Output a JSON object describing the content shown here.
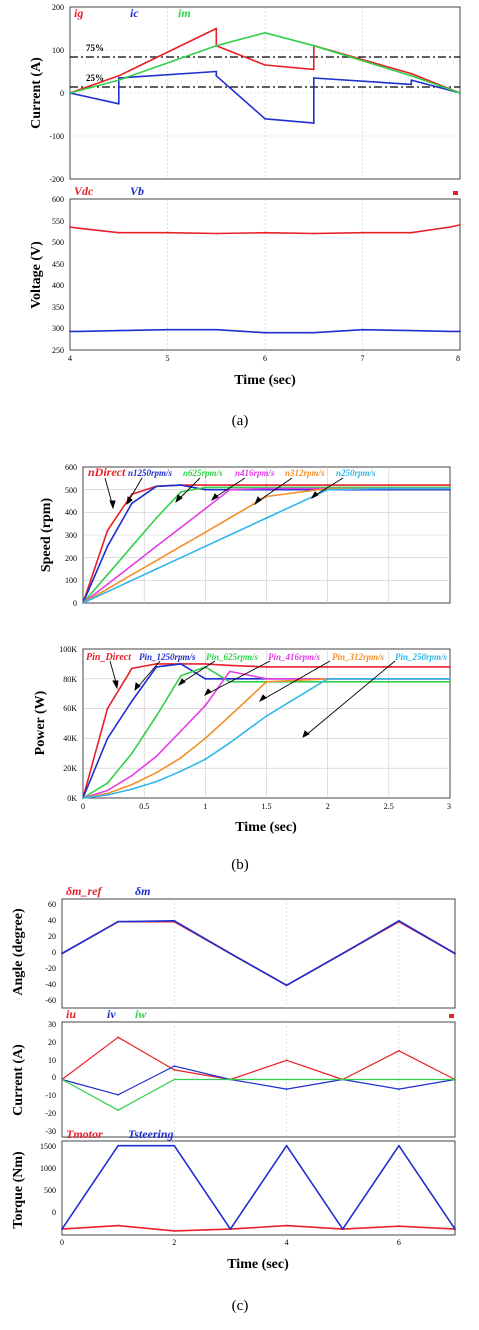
{
  "colors": {
    "red": "#e8202a",
    "blue": "#1f2ecf",
    "green": "#31d04a",
    "magenta": "#e63ce8",
    "orange": "#f4902a",
    "cyan": "#2fb6ea"
  },
  "figure_a": {
    "caption": "(a)",
    "xlabel": "Time (sec)",
    "xticks": [
      "4",
      "5",
      "6",
      "7",
      "8"
    ],
    "top": {
      "ylabel": "Current (A)",
      "yticks": [
        "200",
        "100",
        "0",
        "-100",
        "-200"
      ],
      "legend": [
        {
          "text": "ig",
          "color": "red"
        },
        {
          "text": "ic",
          "color": "blue"
        },
        {
          "text": "im",
          "color": "green"
        }
      ],
      "annotations": [
        "75%",
        "25%"
      ]
    },
    "bottom": {
      "ylabel": "Voltage (V)",
      "yticks": [
        "600",
        "550",
        "500",
        "450",
        "400",
        "350",
        "300",
        "250"
      ],
      "legend": [
        {
          "text": "Vdc",
          "color": "red"
        },
        {
          "text": "Vb",
          "color": "blue"
        }
      ]
    }
  },
  "figure_b": {
    "caption": "(b)",
    "xlabel": "Time (sec)",
    "xticks": [
      "0",
      "0.5",
      "1",
      "1.5",
      "2",
      "2.5",
      "3"
    ],
    "top": {
      "ylabel": "Speed (rpm)",
      "yticks": [
        "600",
        "500",
        "400",
        "300",
        "200",
        "100",
        "0"
      ],
      "legend": [
        {
          "text": "nDirect",
          "color": "red"
        },
        {
          "text": "n1250rpm/s",
          "color": "blue"
        },
        {
          "text": "n625rpm/s",
          "color": "green"
        },
        {
          "text": "n416rpm/s",
          "color": "magenta"
        },
        {
          "text": "n312rpm/s",
          "color": "orange"
        },
        {
          "text": "n250rpm/s",
          "color": "cyan"
        }
      ]
    },
    "bottom": {
      "ylabel": "Power (W)",
      "yticks": [
        "100K",
        "80K",
        "60K",
        "40K",
        "20K",
        "0K"
      ],
      "legend": [
        {
          "text": "Pin_Direct",
          "color": "red"
        },
        {
          "text": "Pin_1250rpm/s",
          "color": "blue"
        },
        {
          "text": "Pin_625rpm/s",
          "color": "green"
        },
        {
          "text": "Pin_416rpm/s",
          "color": "magenta"
        },
        {
          "text": "Pin_312rpm/s",
          "color": "orange"
        },
        {
          "text": "Pin_250rpm/s",
          "color": "cyan"
        }
      ]
    }
  },
  "figure_c": {
    "caption": "(c)",
    "xlabel": "Time (sec)",
    "xticks": [
      "0",
      "2",
      "4",
      "6"
    ],
    "top": {
      "ylabel": "Angle (degree)",
      "yticks": [
        "60",
        "40",
        "20",
        "0",
        "-20",
        "-40",
        "-60"
      ],
      "legend": [
        {
          "text": "δm_ref",
          "color": "red"
        },
        {
          "text": "δm",
          "color": "blue"
        }
      ]
    },
    "middle": {
      "ylabel": "Current (A)",
      "yticks": [
        "30",
        "20",
        "10",
        "0",
        "-10",
        "-20",
        "-30"
      ],
      "legend": [
        {
          "text": "iu",
          "color": "red"
        },
        {
          "text": "iv",
          "color": "blue"
        },
        {
          "text": "iw",
          "color": "green"
        }
      ]
    },
    "bottom": {
      "ylabel": "Torque (Nm)",
      "yticks": [
        "1500",
        "1000",
        "500",
        "0"
      ],
      "legend": [
        {
          "text": "Tmotor",
          "color": "red"
        },
        {
          "text": "Tsteering",
          "color": "blue"
        }
      ]
    }
  },
  "chart_data": [
    {
      "type": "line",
      "panel": "a-top",
      "x": [
        4,
        4.5,
        4.5,
        5.5,
        5.5,
        6,
        6.5,
        6.5,
        7.5,
        7.5,
        8
      ],
      "xlim": [
        4,
        8
      ],
      "ylim": [
        -200,
        200
      ],
      "series": [
        {
          "name": "ig",
          "color": "red",
          "values": [
            0,
            40,
            40,
            150,
            110,
            65,
            55,
            110,
            45,
            45,
            0
          ]
        },
        {
          "name": "ic",
          "color": "blue",
          "values": [
            0,
            -25,
            35,
            50,
            40,
            -60,
            -70,
            35,
            20,
            30,
            0
          ]
        },
        {
          "name": "im",
          "color": "green",
          "values": [
            0,
            30,
            30,
            110,
            110,
            140,
            110,
            110,
            40,
            40,
            0
          ]
        }
      ]
    },
    {
      "type": "line",
      "panel": "a-bottom",
      "x": [
        4,
        4.1,
        4.5,
        5,
        5.5,
        6,
        6.5,
        7,
        7.5,
        7.9,
        8
      ],
      "xlim": [
        4,
        8
      ],
      "ylim": [
        250,
        600
      ],
      "series": [
        {
          "name": "Vdc",
          "color": "red",
          "values": [
            535,
            532,
            522,
            522,
            520,
            522,
            520,
            522,
            522,
            535,
            540
          ]
        },
        {
          "name": "Vb",
          "color": "blue",
          "values": [
            293,
            293,
            295,
            297,
            297,
            290,
            290,
            297,
            295,
            293,
            293
          ]
        }
      ]
    },
    {
      "type": "line",
      "panel": "b-top",
      "x": [
        0,
        0.2,
        0.4,
        0.6,
        0.8,
        1,
        1.2,
        1.5,
        2,
        2.5,
        3
      ],
      "xlim": [
        0,
        3
      ],
      "ylim": [
        0,
        600
      ],
      "series": [
        {
          "name": "nDirect",
          "color": "red",
          "values": [
            0,
            320,
            480,
            515,
            520,
            520,
            520,
            520,
            520,
            520,
            520
          ]
        },
        {
          "name": "n1250rpm/s",
          "color": "blue",
          "values": [
            0,
            250,
            440,
            515,
            520,
            500,
            500,
            500,
            500,
            500,
            500
          ]
        },
        {
          "name": "n625rpm/s",
          "color": "green",
          "values": [
            0,
            125,
            250,
            375,
            490,
            510,
            510,
            510,
            510,
            510,
            510
          ]
        },
        {
          "name": "n416rpm/s",
          "color": "magenta",
          "values": [
            0,
            83,
            166,
            250,
            333,
            416,
            500,
            505,
            505,
            505,
            505
          ]
        },
        {
          "name": "n312rpm/s",
          "color": "orange",
          "values": [
            0,
            62,
            125,
            187,
            250,
            312,
            375,
            470,
            505,
            505,
            505
          ]
        },
        {
          "name": "n250rpm/s",
          "color": "cyan",
          "values": [
            0,
            50,
            100,
            150,
            200,
            250,
            300,
            375,
            500,
            505,
            505
          ]
        }
      ]
    },
    {
      "type": "line",
      "panel": "b-bottom",
      "x": [
        0,
        0.2,
        0.4,
        0.6,
        0.8,
        1,
        1.2,
        1.5,
        2,
        2.5,
        3
      ],
      "xlim": [
        0,
        3
      ],
      "ylim": [
        0,
        100000
      ],
      "series": [
        {
          "name": "Pin_Direct",
          "color": "red",
          "values": [
            0,
            60000,
            87000,
            90000,
            90000,
            90000,
            89000,
            88000,
            88000,
            88000,
            88000
          ]
        },
        {
          "name": "Pin_1250rpm/s",
          "color": "blue",
          "values": [
            0,
            40000,
            65000,
            88000,
            90000,
            80000,
            80000,
            80000,
            80000,
            80000,
            80000
          ]
        },
        {
          "name": "Pin_625rpm/s",
          "color": "green",
          "values": [
            0,
            10000,
            30000,
            55000,
            82000,
            88000,
            78000,
            78000,
            78000,
            78000,
            78000
          ]
        },
        {
          "name": "Pin_416rpm/s",
          "color": "magenta",
          "values": [
            0,
            5000,
            15000,
            28000,
            45000,
            62000,
            85000,
            80000,
            80000,
            80000,
            80000
          ]
        },
        {
          "name": "Pin_312rpm/s",
          "color": "orange",
          "values": [
            0,
            3000,
            9000,
            17000,
            27000,
            40000,
            55000,
            78000,
            80000,
            80000,
            80000
          ]
        },
        {
          "name": "Pin_250rpm/s",
          "color": "cyan",
          "values": [
            0,
            2000,
            6000,
            11000,
            18000,
            26000,
            37000,
            55000,
            80000,
            80000,
            80000
          ]
        }
      ]
    },
    {
      "type": "line",
      "panel": "c-top",
      "x": [
        0,
        1,
        2,
        3,
        4,
        5,
        6,
        7
      ],
      "xlim": [
        0,
        7
      ],
      "ylim": [
        -60,
        60
      ],
      "series": [
        {
          "name": "δm_ref",
          "color": "red",
          "values": [
            0,
            35,
            35,
            0,
            -35,
            0,
            35,
            0
          ]
        },
        {
          "name": "δm",
          "color": "blue",
          "values": [
            0,
            35,
            36,
            0,
            -35,
            0,
            36,
            0
          ]
        }
      ]
    },
    {
      "type": "line",
      "panel": "c-middle",
      "x": [
        0,
        1,
        2,
        3,
        4,
        5,
        6,
        7
      ],
      "xlim": [
        0,
        7
      ],
      "ylim": [
        -30,
        30
      ],
      "series": [
        {
          "name": "iu",
          "color": "red",
          "values": [
            0,
            22,
            5,
            0,
            10,
            0,
            15,
            0
          ]
        },
        {
          "name": "iv",
          "color": "blue",
          "values": [
            0,
            -8,
            7,
            0,
            -5,
            0,
            -5,
            0
          ]
        },
        {
          "name": "iw",
          "color": "green",
          "values": [
            0,
            -16,
            0,
            0,
            0,
            0,
            0,
            0
          ]
        }
      ]
    },
    {
      "type": "line",
      "panel": "c-bottom",
      "x": [
        0,
        1,
        2,
        3,
        4,
        5,
        6,
        7
      ],
      "xlim": [
        0,
        7
      ],
      "ylim": [
        -100,
        1500
      ],
      "series": [
        {
          "name": "Tmotor",
          "color": "red",
          "values": [
            0,
            60,
            -30,
            0,
            60,
            0,
            50,
            0
          ]
        },
        {
          "name": "Tsteering",
          "color": "blue",
          "values": [
            0,
            1420,
            1420,
            0,
            1420,
            0,
            1420,
            0
          ]
        }
      ]
    }
  ]
}
